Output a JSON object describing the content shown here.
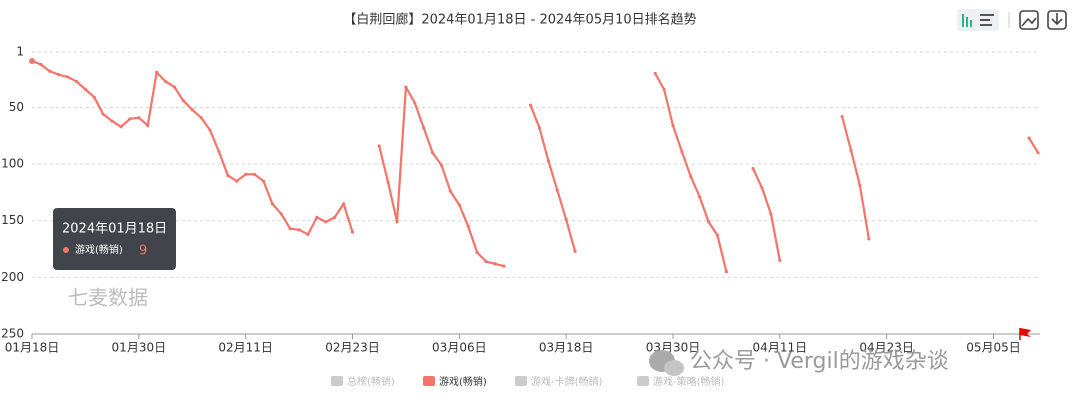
{
  "chart_data": {
    "type": "line",
    "title": "【白荆回廊】2024年01月18日 - 2024年05月10日排名趋势",
    "categories": [
      "01月18日",
      null,
      null,
      null,
      null,
      null,
      null,
      null,
      null,
      null,
      null,
      null,
      "01月30日",
      null,
      null,
      null,
      null,
      null,
      null,
      null,
      null,
      null,
      null,
      null,
      "02月11日",
      null,
      null,
      null,
      null,
      null,
      null,
      null,
      null,
      null,
      null,
      null,
      "02月23日",
      null,
      null,
      null,
      null,
      null,
      null,
      null,
      null,
      null,
      null,
      null,
      "03月06日",
      null,
      null,
      null,
      null,
      null,
      null,
      null,
      null,
      null,
      null,
      null,
      "03月18日",
      null,
      null,
      null,
      null,
      null,
      null,
      null,
      null,
      null,
      null,
      null,
      "03月30日",
      null,
      null,
      null,
      null,
      null,
      null,
      null,
      null,
      null,
      null,
      null,
      "04月11日",
      null,
      null,
      null,
      null,
      null,
      null,
      null,
      null,
      null,
      null,
      null,
      "04月23日",
      null,
      null,
      null,
      null,
      null,
      null,
      null,
      null,
      null,
      null,
      null,
      "05月05日",
      null,
      null,
      null,
      null,
      null
    ],
    "series": [
      {
        "name": "游戏(畅销)",
        "color": "#f4746a",
        "values": [
          9,
          12,
          18,
          21,
          23,
          27,
          34,
          41,
          56,
          62,
          67,
          60,
          59,
          66,
          19,
          27,
          32,
          44,
          52,
          59,
          70,
          89,
          110,
          115,
          109,
          109,
          115,
          135,
          144,
          157,
          158,
          162,
          147,
          151,
          147,
          135,
          160,
          null,
          null,
          84,
          116,
          151,
          32,
          46,
          68,
          90,
          101,
          124,
          136,
          155,
          178,
          186,
          188,
          190,
          null,
          null,
          48,
          68,
          97,
          123,
          149,
          177,
          null,
          null,
          null,
          null,
          null,
          null,
          null,
          null,
          20,
          34,
          66,
          89,
          111,
          129,
          151,
          163,
          195,
          null,
          null,
          104,
          121,
          144,
          185,
          null,
          null,
          null,
          null,
          null,
          null,
          58,
          88,
          119,
          166,
          null,
          null,
          null,
          null,
          null,
          null,
          null,
          null,
          null,
          null,
          null,
          null,
          null,
          null,
          null,
          null,
          null,
          77,
          90
        ]
      }
    ],
    "legend": [
      {
        "name": "总榜(畅销)",
        "active": false
      },
      {
        "name": "游戏(畅销)",
        "active": true
      },
      {
        "name": "游戏-卡牌(畅销)",
        "active": false
      },
      {
        "name": "游戏-策略(畅销)",
        "active": false
      }
    ],
    "ylim": [
      1,
      250
    ],
    "yticks": [
      1,
      50,
      100,
      150,
      200,
      250
    ],
    "y_inverted": true,
    "grid": true,
    "tooltip_title": "2024年01月18日",
    "watermark": "七麦数据",
    "overlay_text": "公众号 · Vergil的游戏杂谈"
  }
}
